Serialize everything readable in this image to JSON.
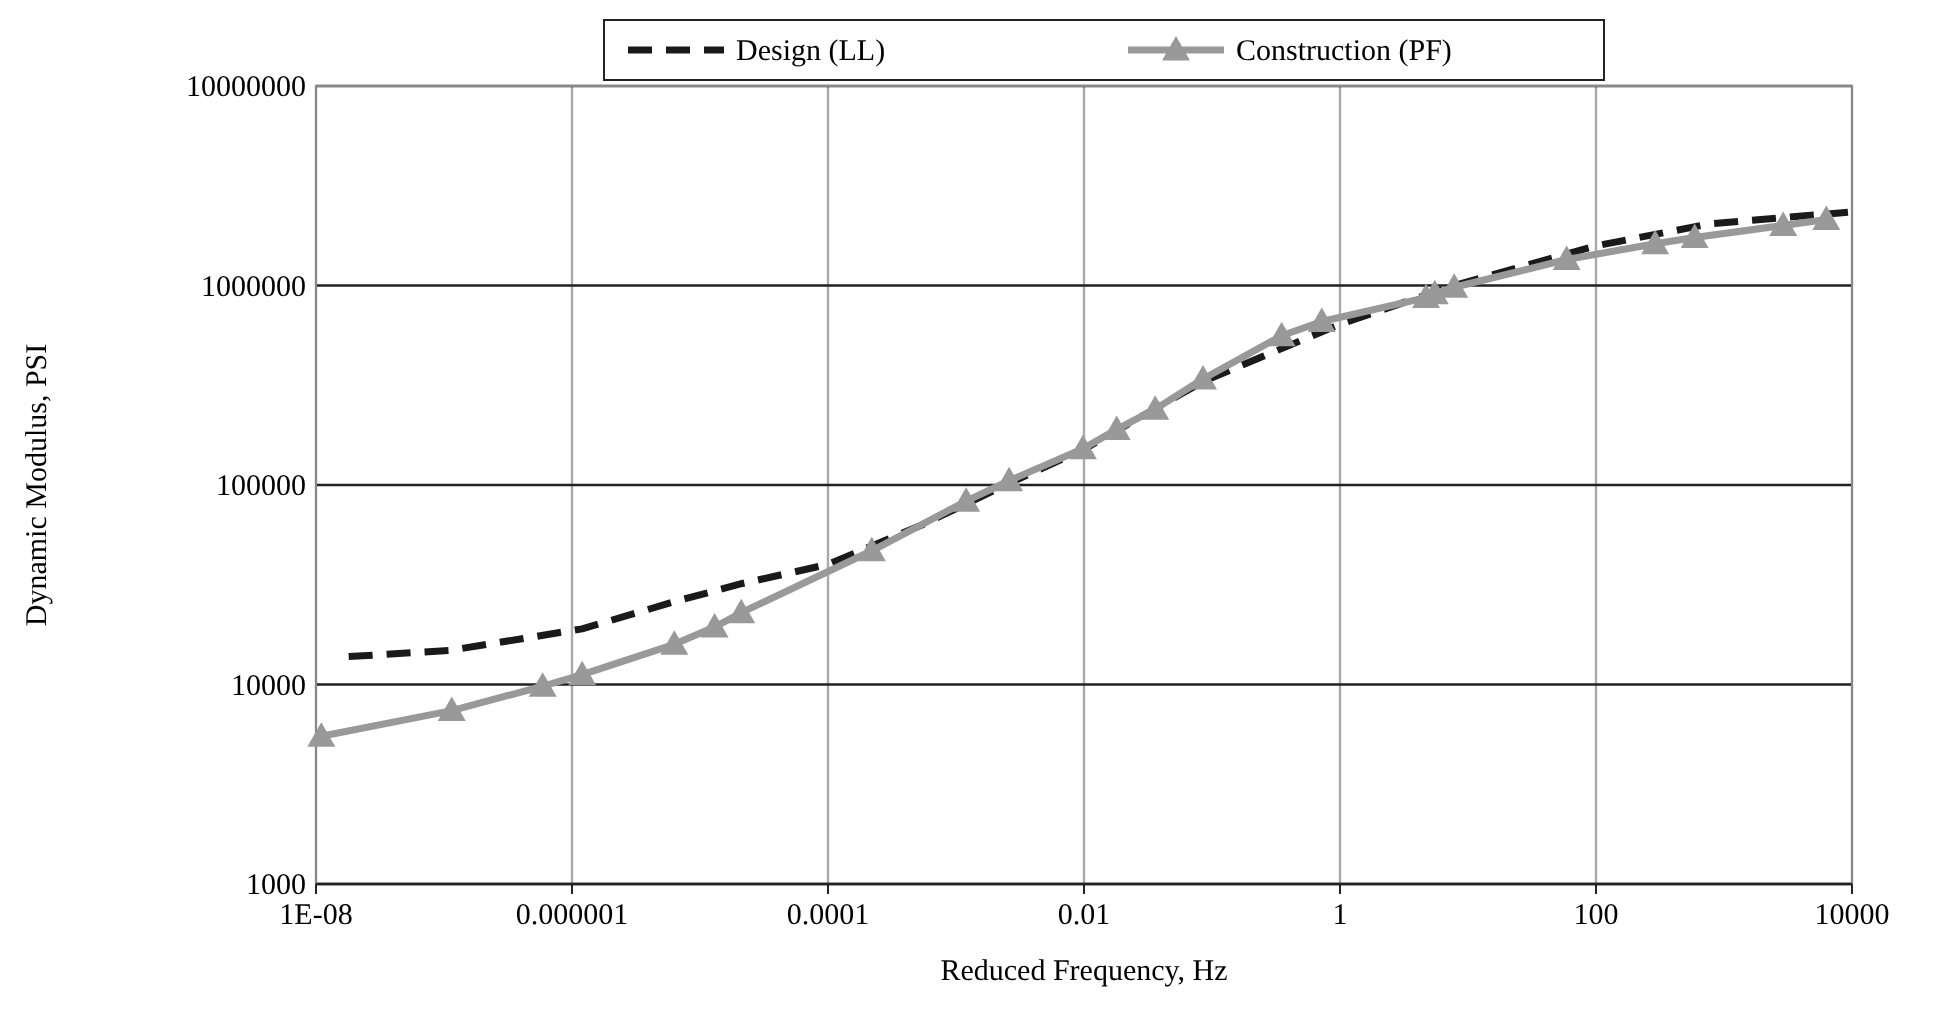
{
  "chart_data": {
    "type": "line",
    "xlabel": "Reduced Frequency, Hz",
    "ylabel": "Dynamic Modulus, PSI",
    "log": "xy",
    "grid": true,
    "legend": "top",
    "xlim": [
      1e-08,
      10000
    ],
    "xticks": [
      {
        "value": 1e-08,
        "label": "1E-08"
      },
      {
        "value": 1e-06,
        "label": "0.000001"
      },
      {
        "value": 0.0001,
        "label": "0.0001"
      },
      {
        "value": 0.01,
        "label": "0.01"
      },
      {
        "value": 1,
        "label": "1"
      },
      {
        "value": 100,
        "label": "100"
      },
      {
        "value": 10000,
        "label": "10000"
      }
    ],
    "ylim": [
      1000,
      10000000
    ],
    "yticks": [
      1000,
      10000,
      100000,
      1000000,
      10000000
    ],
    "series": [
      {
        "name": "Design (LL)",
        "color": "#1a1a1a",
        "line_style": "dashed",
        "marker": "none",
        "x": [
          1.8e-08,
          1.1e-07,
          1.2e-06,
          6.3e-06,
          2.1e-05,
          0.0001,
          0.00054,
          0.0026,
          0.0098,
          0.085,
          1,
          7.8,
          100,
          780,
          9300
        ],
        "values": [
          13800,
          14800,
          19000,
          26000,
          32000,
          40000,
          63000,
          102000,
          150000,
          330000,
          640000,
          1000000,
          1580000,
          2040000,
          2330000
        ]
      },
      {
        "name": "Construction (PF)",
        "color": "#999999",
        "line_style": "solid",
        "marker": "triangle",
        "x": [
          1.1e-08,
          1.15e-07,
          5.9e-07,
          1.2e-06,
          6.3e-06,
          1.3e-05,
          2.1e-05,
          0.00022,
          0.0012,
          0.0026,
          0.0098,
          0.018,
          0.036,
          0.085,
          0.35,
          0.72,
          4.7,
          5.5,
          7.8,
          59,
          290,
          590,
          2900,
          6300
        ],
        "values": [
          5500,
          7400,
          9800,
          11200,
          15900,
          19400,
          22900,
          46800,
          83000,
          105000,
          152000,
          190000,
          240000,
          340000,
          560000,
          660000,
          870000,
          910000,
          980000,
          1350000,
          1620000,
          1740000,
          2000000,
          2140000
        ]
      }
    ]
  }
}
